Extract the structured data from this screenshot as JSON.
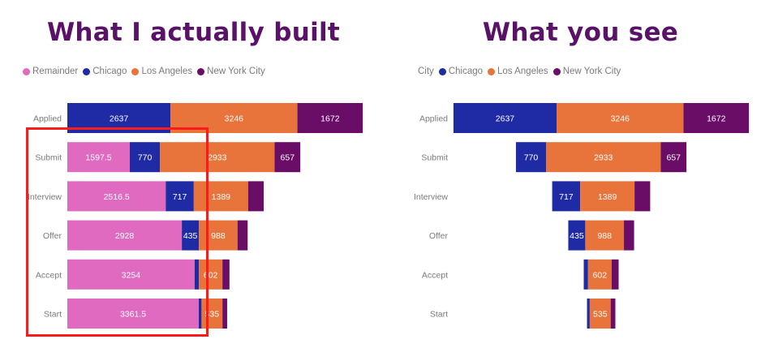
{
  "colors": {
    "title": "#5a1268",
    "Remainder": "#e06ac0",
    "Chicago": "#1f2aa5",
    "Los Angeles": "#e8743b",
    "New York City": "#6a0d66",
    "highlight": "#ff1a1a"
  },
  "chart_data": [
    {
      "type": "bar",
      "orientation": "horizontal",
      "stacked": true,
      "title": "What I actually built",
      "legend_title": "",
      "legend": [
        "Remainder",
        "Chicago",
        "Los Angeles",
        "New York City"
      ],
      "legend_position": "top-left",
      "categories": [
        "Applied",
        "Submit",
        "Interview",
        "Offer",
        "Accept",
        "Start"
      ],
      "series": [
        {
          "name": "Remainder",
          "values": [
            0,
            1597.5,
            2516.5,
            2928,
            3254,
            3361.5
          ],
          "labels": [
            "",
            "1597.5",
            "2516.5",
            "2928",
            "3254",
            "3361.5"
          ]
        },
        {
          "name": "Chicago",
          "values": [
            2637,
            770,
            717,
            435,
            110,
            70
          ],
          "labels": [
            "2637",
            "770",
            "717",
            "435",
            "",
            ""
          ]
        },
        {
          "name": "Los Angeles",
          "values": [
            3246,
            2933,
            1389,
            988,
            602,
            535
          ],
          "labels": [
            "3246",
            "2933",
            "1389",
            "988",
            "602",
            "535"
          ]
        },
        {
          "name": "New York City",
          "values": [
            1672,
            657,
            400,
            260,
            180,
            120
          ],
          "labels": [
            "1672",
            "657",
            "",
            "",
            "",
            ""
          ]
        }
      ],
      "highlight": {
        "categories": [
          "Submit",
          "Interview",
          "Offer",
          "Accept",
          "Start"
        ]
      }
    },
    {
      "type": "bar",
      "orientation": "horizontal",
      "stacked": true,
      "funnel": true,
      "title": "What you see",
      "legend_title": "City",
      "legend": [
        "Chicago",
        "Los Angeles",
        "New York City"
      ],
      "legend_position": "top-left",
      "categories": [
        "Applied",
        "Submit",
        "Interview",
        "Offer",
        "Accept",
        "Start"
      ],
      "series": [
        {
          "name": "Chicago",
          "values": [
            2637,
            770,
            717,
            435,
            110,
            70
          ],
          "labels": [
            "2637",
            "770",
            "717",
            "435",
            "",
            ""
          ]
        },
        {
          "name": "Los Angeles",
          "values": [
            3246,
            2933,
            1389,
            988,
            602,
            535
          ],
          "labels": [
            "3246",
            "2933",
            "1389",
            "988",
            "602",
            "535"
          ]
        },
        {
          "name": "New York City",
          "values": [
            1672,
            657,
            400,
            260,
            180,
            120
          ],
          "labels": [
            "1672",
            "657",
            "",
            "",
            "",
            ""
          ]
        }
      ]
    }
  ]
}
